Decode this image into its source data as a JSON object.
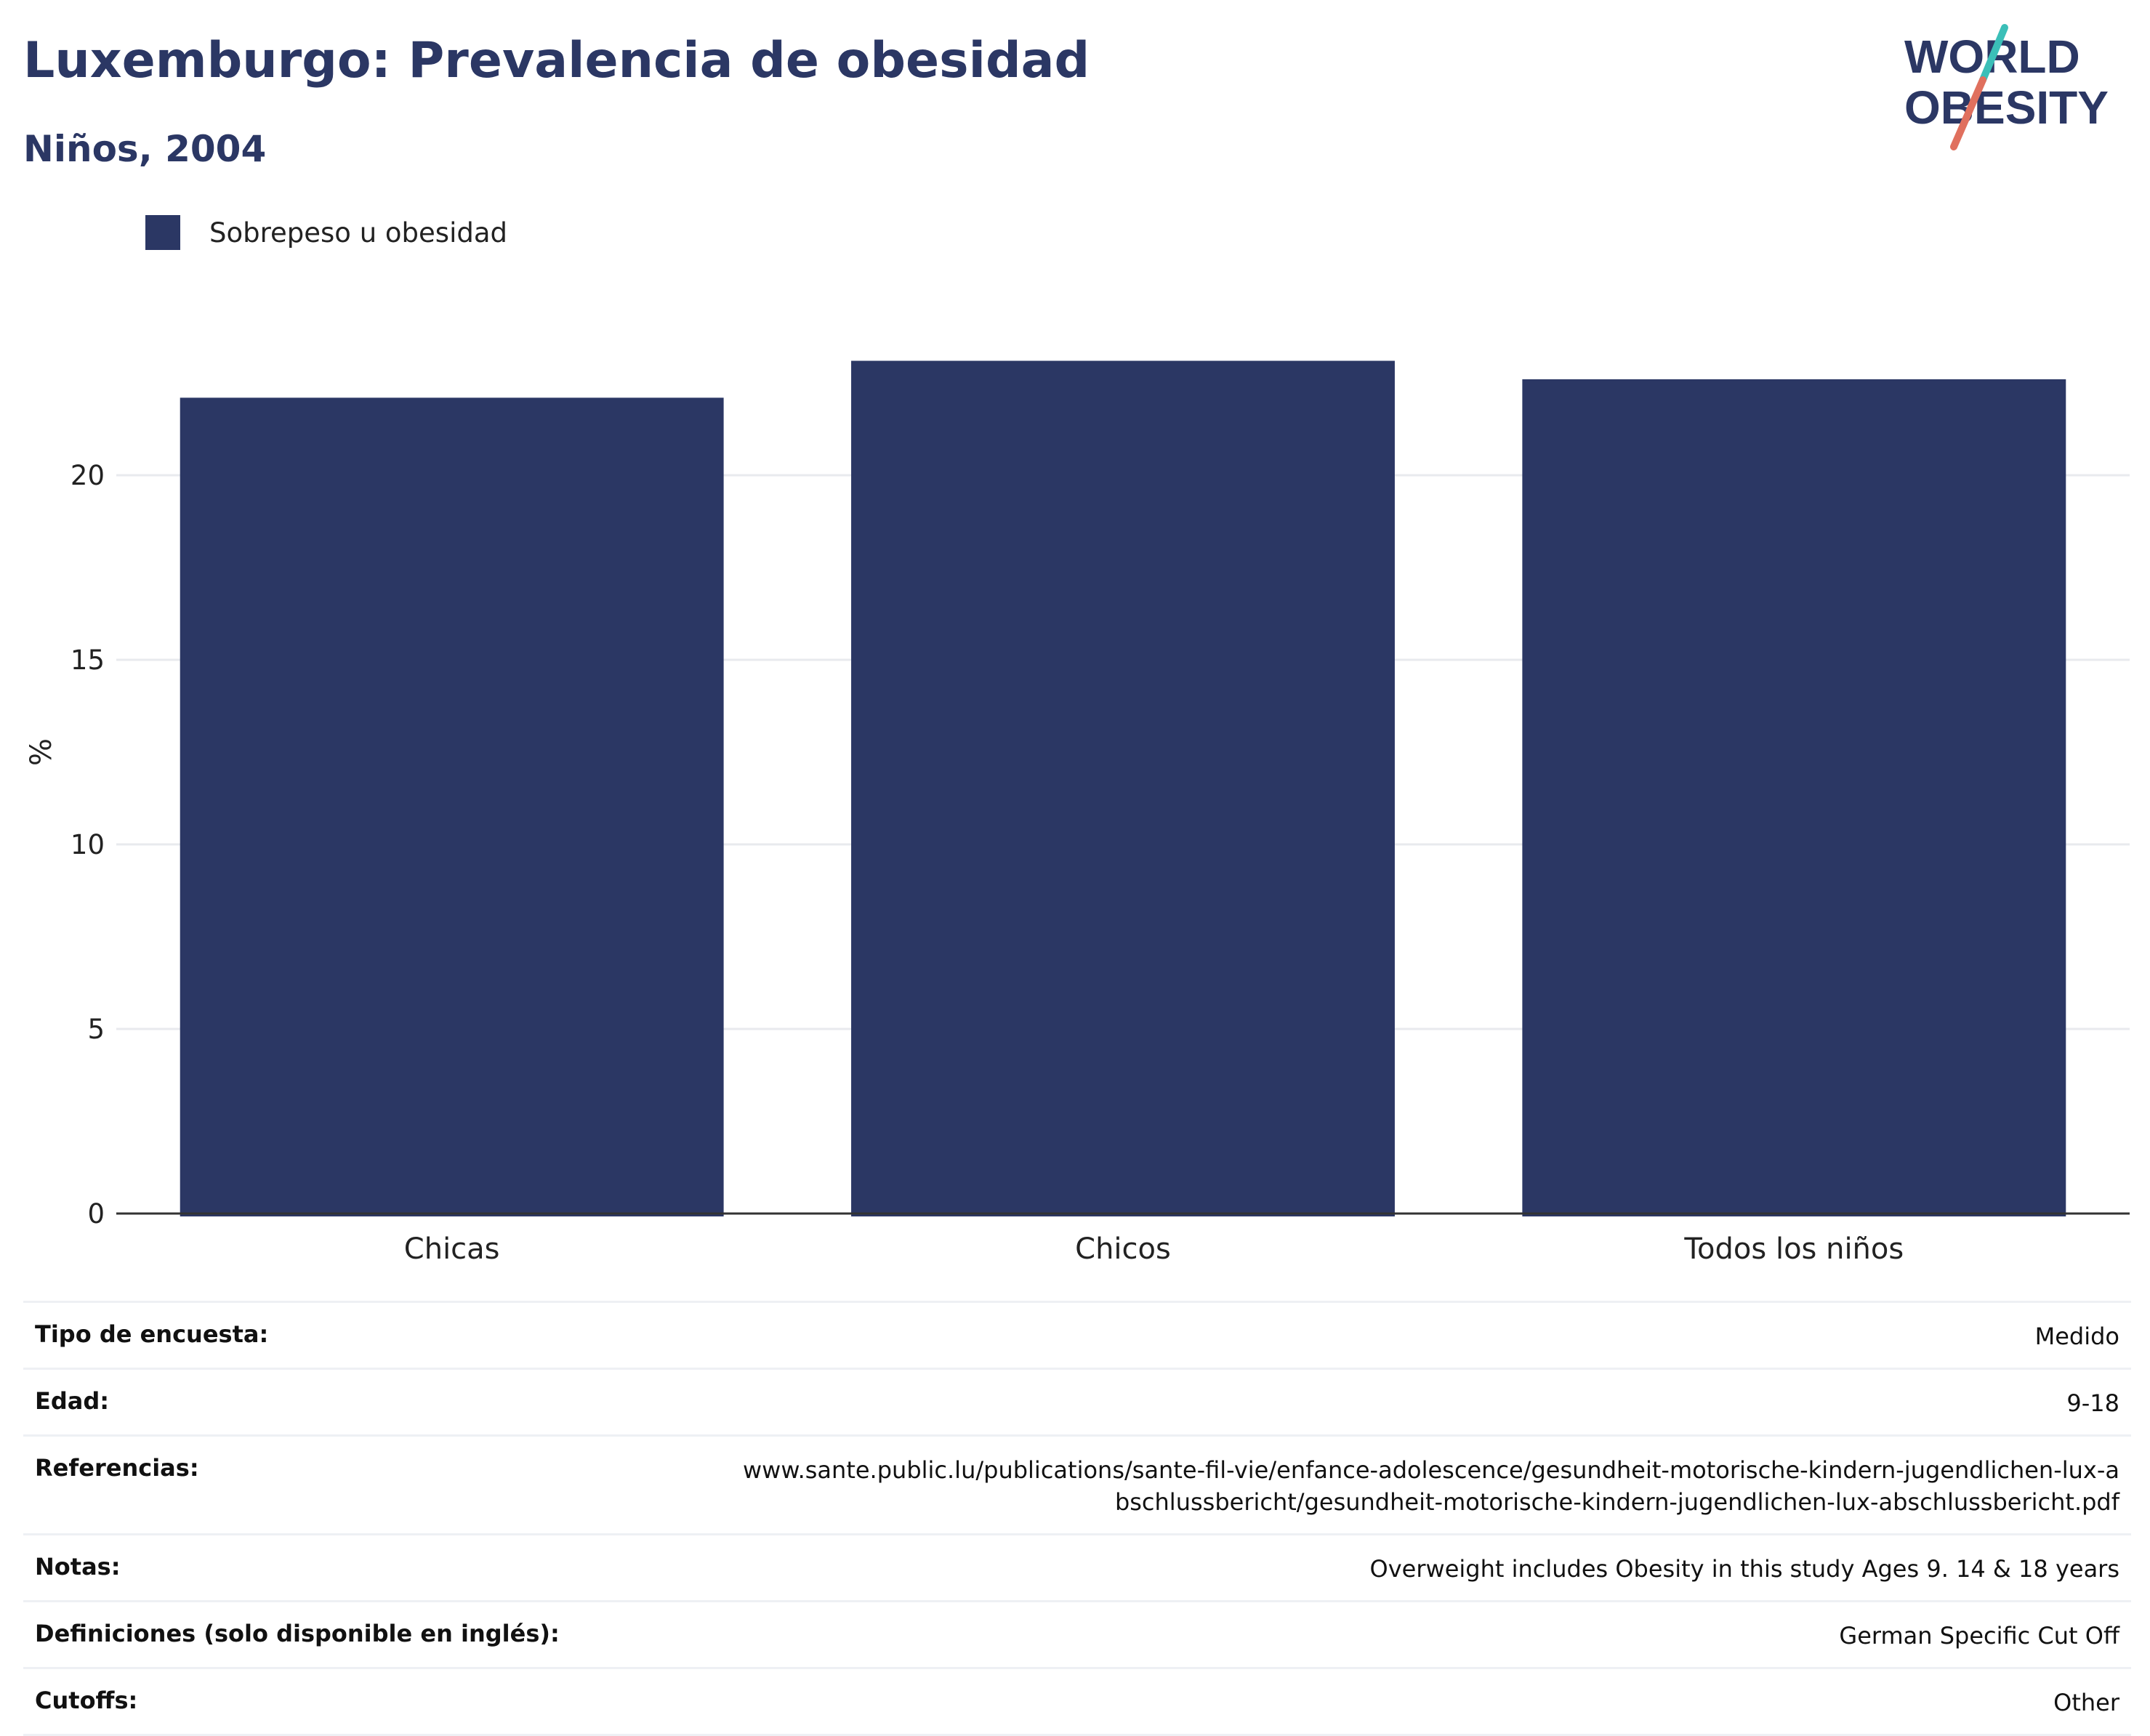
{
  "header": {
    "title": "Luxemburgo: Prevalencia de obesidad",
    "subtitle": "Niños, 2004",
    "logo_text_line1": "WORLD",
    "logo_text_line2": "OBESITY"
  },
  "colors": {
    "bar": "#2b3764",
    "logo_teal": "#3bbfb8",
    "logo_coral": "#e0705e",
    "gridline": "#e8eaee",
    "axis": "#333333"
  },
  "chart_data": {
    "type": "bar",
    "categories": [
      "Chicas",
      "Chicos",
      "Todos los niños"
    ],
    "series": [
      {
        "name": "Sobrepeso u obesidad",
        "values": [
          22.1,
          23.1,
          22.6
        ]
      }
    ],
    "title": "Luxemburgo: Prevalencia de obesidad",
    "subtitle": "Niños, 2004",
    "xlabel": "",
    "ylabel": "%",
    "ylim": [
      0,
      25
    ],
    "yticks": [
      0,
      5,
      10,
      15,
      20
    ],
    "grid": true,
    "legend": "top-left"
  },
  "meta": {
    "rows": [
      {
        "label": "Tipo de encuesta:",
        "value": "Medido"
      },
      {
        "label": "Edad:",
        "value": "9-18"
      },
      {
        "label": "Referencias:",
        "value": "www.sante.public.lu/publications/sante-fil-vie/enfance-adolescence/gesundheit-motorische-kindern-jugendlichen-lux-abschlussbericht/gesundheit-motorische-kindern-jugendlichen-lux-abschlussbericht.pdf"
      },
      {
        "label": "Notas:",
        "value": "Overweight includes Obesity in this study Ages 9. 14 & 18 years"
      },
      {
        "label": "Definiciones (solo disponible en inglés):",
        "value": "German Specific Cut Off"
      },
      {
        "label": "Cutoffs:",
        "value": "Other"
      }
    ]
  }
}
